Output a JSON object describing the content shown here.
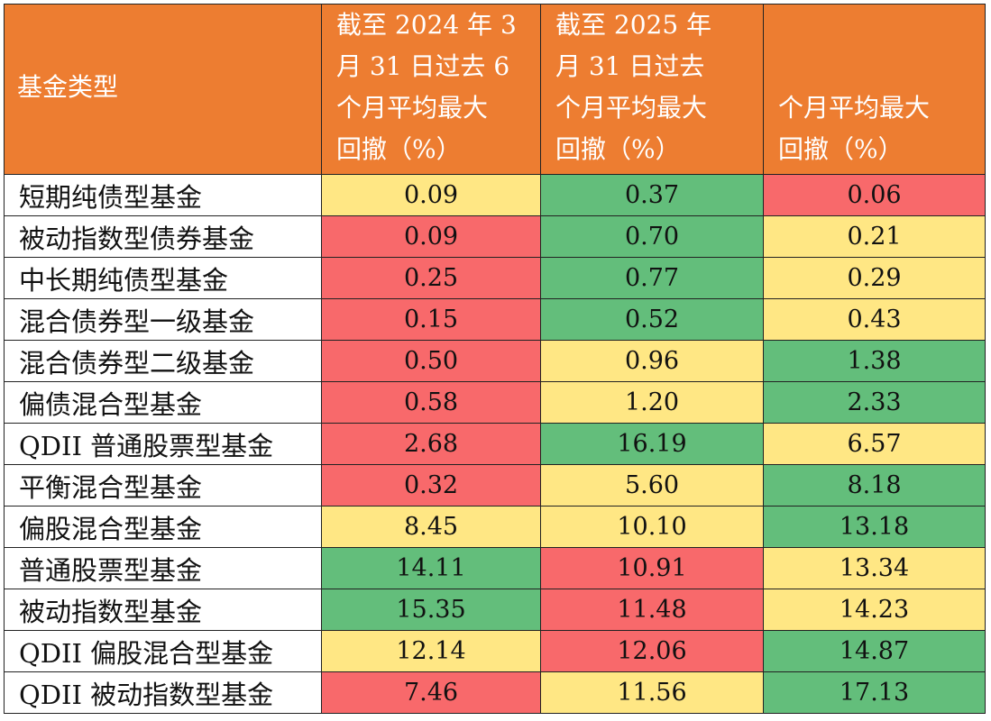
{
  "header": {
    "col0": "基金类型",
    "col1": [
      "截至 2024 年 3",
      "月 31 日过去 6",
      "个月平均最大",
      "回撤（%）"
    ],
    "col2": [
      "截至 2025 年",
      "月 31 日过去",
      "个月平均最大",
      "回撤（%）"
    ],
    "col3": [
      "个月平均最大",
      "回撤（%）"
    ]
  },
  "colors": {
    "header": "#ED7D31",
    "green": "#63BE7B",
    "yellow": "#FFE784",
    "red": "#F8696B"
  },
  "rows": [
    {
      "name": "短期纯债型基金",
      "v": [
        "0.09",
        "0.37",
        "0.06"
      ],
      "c": [
        "y",
        "g",
        "r"
      ]
    },
    {
      "name": "被动指数型债券基金",
      "v": [
        "0.09",
        "0.70",
        "0.21"
      ],
      "c": [
        "r",
        "g",
        "y"
      ]
    },
    {
      "name": "中长期纯债型基金",
      "v": [
        "0.25",
        "0.77",
        "0.29"
      ],
      "c": [
        "r",
        "g",
        "y"
      ]
    },
    {
      "name": "混合债券型一级基金",
      "v": [
        "0.15",
        "0.52",
        "0.43"
      ],
      "c": [
        "r",
        "g",
        "y"
      ]
    },
    {
      "name": "混合债券型二级基金",
      "v": [
        "0.50",
        "0.96",
        "1.38"
      ],
      "c": [
        "r",
        "y",
        "g"
      ]
    },
    {
      "name": "偏债混合型基金",
      "v": [
        "0.58",
        "1.20",
        "2.33"
      ],
      "c": [
        "r",
        "y",
        "g"
      ]
    },
    {
      "name": "QDII 普通股票型基金",
      "v": [
        "2.68",
        "16.19",
        "6.57"
      ],
      "c": [
        "r",
        "g",
        "y"
      ]
    },
    {
      "name": "平衡混合型基金",
      "v": [
        "0.32",
        "5.60",
        "8.18"
      ],
      "c": [
        "r",
        "y",
        "g"
      ]
    },
    {
      "name": "偏股混合型基金",
      "v": [
        "8.45",
        "10.10",
        "13.18"
      ],
      "c": [
        "y",
        "y",
        "g"
      ]
    },
    {
      "name": "普通股票型基金",
      "v": [
        "14.11",
        "10.91",
        "13.34"
      ],
      "c": [
        "g",
        "r",
        "y"
      ]
    },
    {
      "name": "被动指数型基金",
      "v": [
        "15.35",
        "11.48",
        "14.23"
      ],
      "c": [
        "g",
        "r",
        "y"
      ]
    },
    {
      "name": "QDII 偏股混合型基金",
      "v": [
        "12.14",
        "12.06",
        "14.87"
      ],
      "c": [
        "y",
        "r",
        "g"
      ]
    },
    {
      "name": "QDII 被动指数型基金",
      "v": [
        "7.46",
        "11.56",
        "17.13"
      ],
      "c": [
        "r",
        "y",
        "g"
      ]
    }
  ]
}
